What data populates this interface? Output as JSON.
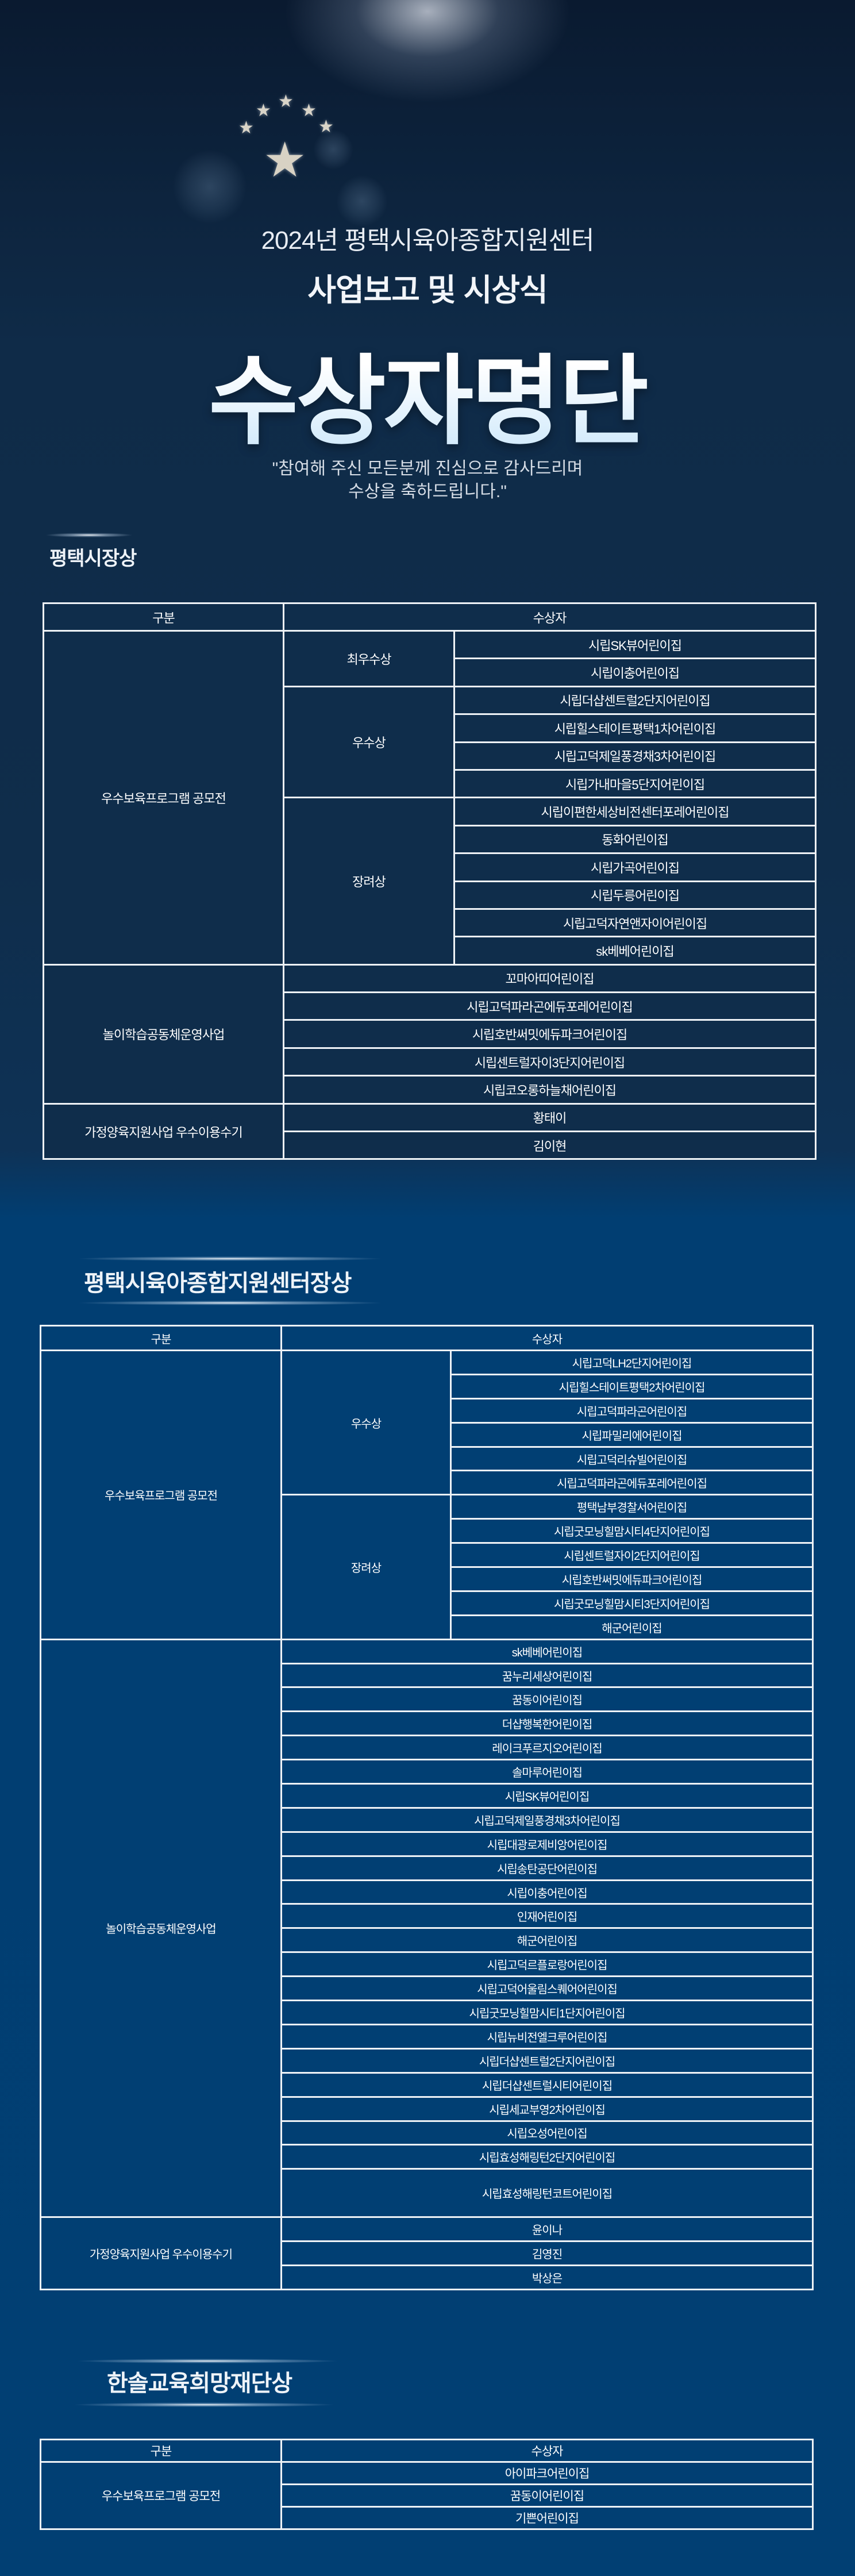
{
  "hero": {
    "line1": "2024년 평택시육아종합지원센터",
    "line2": "사업보고 및 시상식",
    "headline": "수상자명단",
    "quote_line1": "\"참여해 주신 모든분께 진심으로 감사드리며",
    "quote_line2": "수상을 축하드립니다.\"",
    "icons": [
      "star-icon",
      "fireworks-icon"
    ]
  },
  "colors": {
    "top_background": "#0f2d4b",
    "lower_background": "#013f73",
    "border": "#eef2f6",
    "text": "#ffffff"
  },
  "sections": [
    {
      "title": "평택시장상",
      "header": {
        "category": "구분",
        "winner": "수상자"
      },
      "groups": [
        {
          "category": "우수보육프로그램 공모전",
          "subgroups": [
            {
              "award": "최우수상",
              "winners": [
                "시립SK뷰어린이집",
                "시립이충어린이집"
              ]
            },
            {
              "award": "우수상",
              "winners": [
                "시립더샵센트럴2단지어린이집",
                "시립힐스테이트평택1차어린이집",
                "시립고덕제일풍경채3차어린이집",
                "시립가내마을5단지어린이집"
              ]
            },
            {
              "award": "장려상",
              "winners": [
                "시립이편한세상비전센터포레어린이집",
                "동화어린이집",
                "시립가곡어린이집",
                "시립두릉어린이집",
                "시립고덕자연앤자이어린이집",
                "sk베베어린이집"
              ]
            }
          ]
        },
        {
          "category": "놀이학습공동체운영사업",
          "winners": [
            "꼬마아띠어린이집",
            "시립고덕파라곤에듀포레어린이집",
            "시립호반써밋에듀파크어린이집",
            "시립센트럴자이3단지어린이집",
            "시립코오롱하늘채어린이집"
          ]
        },
        {
          "category": "가정양육지원사업  우수이용수기",
          "winners": [
            "황태이",
            "김이현"
          ]
        }
      ]
    },
    {
      "title": "평택시육아종합지원센터장상",
      "header": {
        "category": "구분",
        "winner": "수상자"
      },
      "groups": [
        {
          "category": "우수보육프로그램 공모전",
          "subgroups": [
            {
              "award": "우수상",
              "winners": [
                "시립고덕LH2단지어린이집",
                "시립힐스테이트평택2차어린이집",
                "시립고덕파라곤어린이집",
                "시립파밀리에어린이집",
                "시립고덕리슈빌어린이집",
                "시립고덕파라곤에듀포레어린이집"
              ]
            },
            {
              "award": "장려상",
              "winners": [
                "평택남부경찰서어린이집",
                "시립굿모닝힐맘시티4단지어린이집",
                "시립센트럴자이2단지어린이집",
                "시립호반써밋에듀파크어린이집",
                "시립굿모닝힐맘시티3단지어린이집",
                "해군어린이집"
              ]
            }
          ]
        },
        {
          "category": "놀이학습공동체운영사업",
          "winners": [
            "sk베베어린이집",
            "꿈누리세상어린이집",
            "꿈동이어린이집",
            "더샵행복한어린이집",
            "레이크푸르지오어린이집",
            "솔마루어린이집",
            "시립SK뷰어린이집",
            "시립고덕제일풍경채3차어린이집",
            "시립대광로제비앙어린이집",
            "시립송탄공단어린이집",
            "시립이충어린이집",
            "인재어린이집",
            "해군어린이집",
            "시립고덕르플로랑어린이집",
            "시립고덕어울림스퀘어어린이집",
            "시립굿모닝힐맘시티1단지어린이집",
            "시립뉴비전엘크루어린이집",
            "시립더샵센트럴2단지어린이집",
            "시립더샵센트럴시티어린이집",
            "시립세교부영2차어린이집",
            "시립오성어린이집",
            "시립효성해링턴2단지어린이집",
            "시립효성해링턴코트어린이집"
          ]
        },
        {
          "category": "가정양육지원사업  우수이용수기",
          "winners": [
            "윤이나",
            "김영진",
            "박상은"
          ]
        }
      ]
    },
    {
      "title": "한솔교육희망재단상",
      "header": {
        "category": "구분",
        "winner": "수상자"
      },
      "groups": [
        {
          "category": "우수보육프로그램 공모전",
          "winners": [
            "아이파크어린이집",
            "꿈동이어린이집",
            "기쁜어린이집"
          ]
        }
      ]
    }
  ]
}
